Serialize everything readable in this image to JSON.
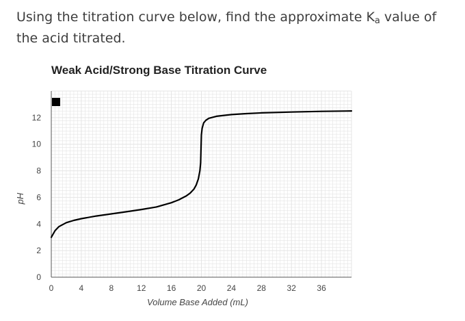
{
  "question": {
    "before": "Using the titration curve below, find the approximate K",
    "subscript": "a",
    "after": " value of the acid titrated."
  },
  "chart_data": {
    "type": "line",
    "title": "Weak Acid/Strong Base Titration Curve",
    "xlabel": "Volume Base Added (mL)",
    "ylabel": "pH",
    "xlim": [
      0,
      40
    ],
    "ylim": [
      0,
      14
    ],
    "xticks": [
      0,
      4,
      8,
      12,
      16,
      20,
      24,
      28,
      32,
      36
    ],
    "yticks": [
      0,
      2,
      4,
      6,
      8,
      10,
      12
    ],
    "grid": true,
    "legend": "top-left",
    "colors": {
      "line": "#000000",
      "grid": "#e4e4e4",
      "axis": "#555555",
      "legend_marker": "#000000"
    },
    "series": [
      {
        "x": [
          0,
          0.5,
          1,
          2,
          3,
          4,
          6,
          8,
          10,
          12,
          14,
          16,
          17,
          18,
          18.5,
          19,
          19.3,
          19.6,
          19.8,
          19.9,
          20,
          20,
          20.1,
          20.3,
          20.6,
          21,
          22,
          24,
          26,
          28,
          32,
          36,
          40
        ],
        "y": [
          3.0,
          3.5,
          3.8,
          4.1,
          4.27,
          4.4,
          4.6,
          4.76,
          4.92,
          5.09,
          5.28,
          5.6,
          5.82,
          6.12,
          6.32,
          6.62,
          6.92,
          7.4,
          8.0,
          8.6,
          10.7,
          10.7,
          11.2,
          11.6,
          11.8,
          11.95,
          12.1,
          12.23,
          12.3,
          12.36,
          12.42,
          12.47,
          12.5
        ]
      }
    ]
  }
}
